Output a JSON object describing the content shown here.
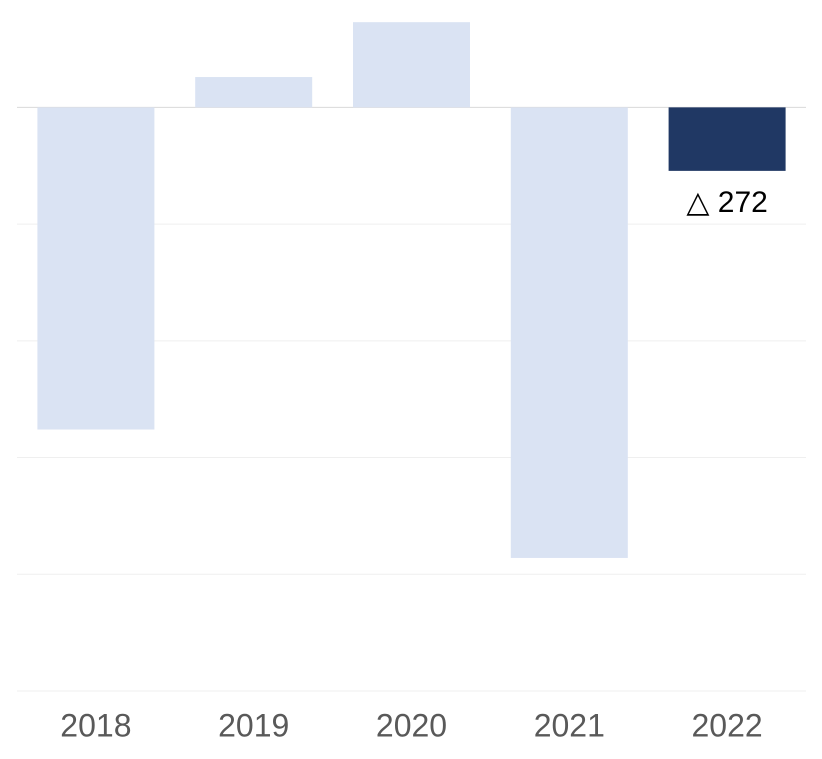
{
  "chart_data": {
    "type": "bar",
    "categories": [
      "2018",
      "2019",
      "2020",
      "2021",
      "2022"
    ],
    "values": [
      -1380,
      130,
      365,
      -1930,
      -272
    ],
    "value_labels": [
      null,
      null,
      null,
      null,
      "△ 272"
    ],
    "colors": [
      "#dae3f3",
      "#dae3f3",
      "#dae3f3",
      "#dae3f3",
      "#203864"
    ],
    "ylim": [
      -2500,
      400
    ],
    "yticks": [
      -2500,
      -2000,
      -1500,
      -1000,
      -500,
      0
    ],
    "grid": true
  }
}
